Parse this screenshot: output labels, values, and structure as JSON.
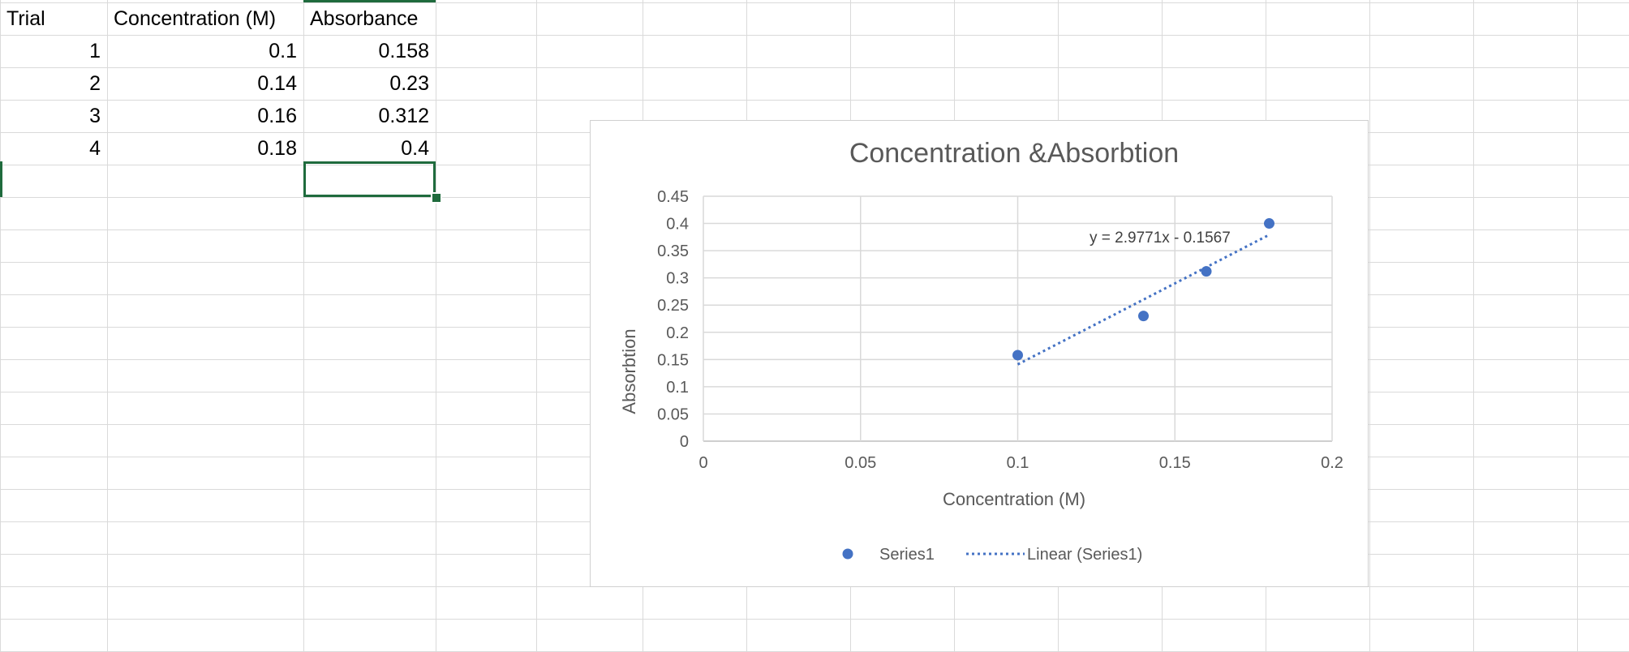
{
  "sheet": {
    "headers": [
      "Trial",
      "Concentration (M)",
      "Absorbance"
    ],
    "rows": [
      [
        "1",
        "0.1",
        "0.158"
      ],
      [
        "2",
        "0.14",
        "0.23"
      ],
      [
        "3",
        "0.16",
        "0.312"
      ],
      [
        "4",
        "0.18",
        "0.4"
      ]
    ],
    "selected_cell": "C6"
  },
  "chart_data": {
    "type": "scatter",
    "title": "Concentration &Absorbtion",
    "xlabel": "Concentration (M)",
    "ylabel": "Absorbtion",
    "xlim": [
      0,
      0.2
    ],
    "ylim": [
      0,
      0.45
    ],
    "x_ticks": [
      "0",
      "0.05",
      "0.1",
      "0.15",
      "0.2"
    ],
    "y_ticks": [
      "0",
      "0.05",
      "0.1",
      "0.15",
      "0.2",
      "0.25",
      "0.3",
      "0.35",
      "0.4",
      "0.45"
    ],
    "grid": true,
    "legend_position": "bottom",
    "series": [
      {
        "name": "Series1",
        "x": [
          0.1,
          0.14,
          0.16,
          0.18
        ],
        "y": [
          0.158,
          0.23,
          0.312,
          0.4
        ],
        "color": "#4472c4"
      }
    ],
    "trendline": {
      "name": "Linear (Series1)",
      "slope": 2.9771,
      "intercept": -0.1567,
      "x_range": [
        0.1,
        0.18
      ],
      "equation": "y = 2.9771x - 0.1567",
      "color": "#4472c4",
      "style": "dotted"
    }
  }
}
